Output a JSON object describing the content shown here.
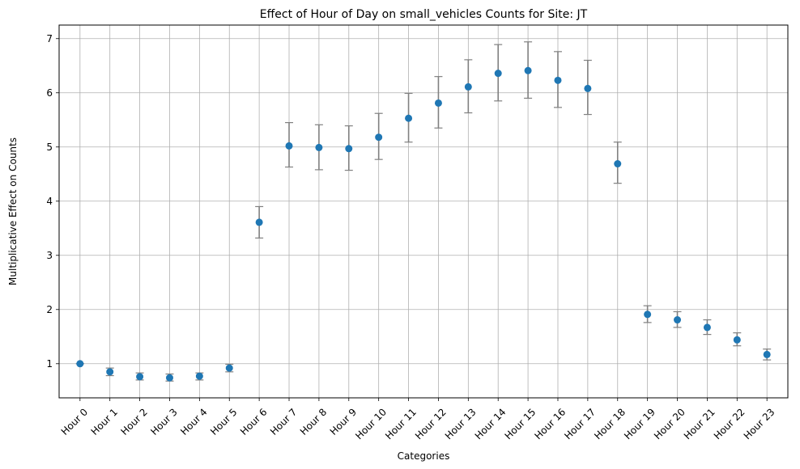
{
  "chart_data": {
    "type": "scatter",
    "title": "Effect of Hour of Day on small_vehicles Counts for Site: JT",
    "xlabel": "Categories",
    "ylabel": "Multiplicative Effect on Counts",
    "categories": [
      "Hour 0",
      "Hour 1",
      "Hour 2",
      "Hour 3",
      "Hour 4",
      "Hour 5",
      "Hour 6",
      "Hour 7",
      "Hour 8",
      "Hour 9",
      "Hour 10",
      "Hour 11",
      "Hour 12",
      "Hour 13",
      "Hour 14",
      "Hour 15",
      "Hour 16",
      "Hour 17",
      "Hour 18",
      "Hour 19",
      "Hour 20",
      "Hour 21",
      "Hour 22",
      "Hour 23"
    ],
    "series": [
      {
        "values": [
          1.0,
          0.85,
          0.76,
          0.74,
          0.77,
          0.92,
          3.61,
          5.02,
          4.99,
          4.97,
          5.18,
          5.53,
          5.81,
          6.11,
          6.36,
          6.41,
          6.23,
          6.08,
          4.69,
          1.91,
          1.81,
          1.67,
          1.44,
          1.17
        ],
        "lower": [
          1.0,
          0.78,
          0.7,
          0.68,
          0.7,
          0.85,
          3.32,
          4.63,
          4.58,
          4.57,
          4.77,
          5.09,
          5.35,
          5.63,
          5.85,
          5.9,
          5.73,
          5.6,
          4.33,
          1.76,
          1.67,
          1.54,
          1.33,
          1.07
        ],
        "upper": [
          1.0,
          0.92,
          0.83,
          0.81,
          0.83,
          0.99,
          3.9,
          5.45,
          5.41,
          5.39,
          5.62,
          5.99,
          6.3,
          6.61,
          6.89,
          6.94,
          6.76,
          6.6,
          5.09,
          2.07,
          1.96,
          1.81,
          1.57,
          1.27
        ],
        "color": "#1f77b4",
        "error_color": "#808080"
      }
    ],
    "ylim": [
      0.37,
      7.25
    ],
    "yticks": [
      1,
      2,
      3,
      4,
      5,
      6,
      7
    ],
    "grid": true,
    "x_tick_rotation": 45
  }
}
